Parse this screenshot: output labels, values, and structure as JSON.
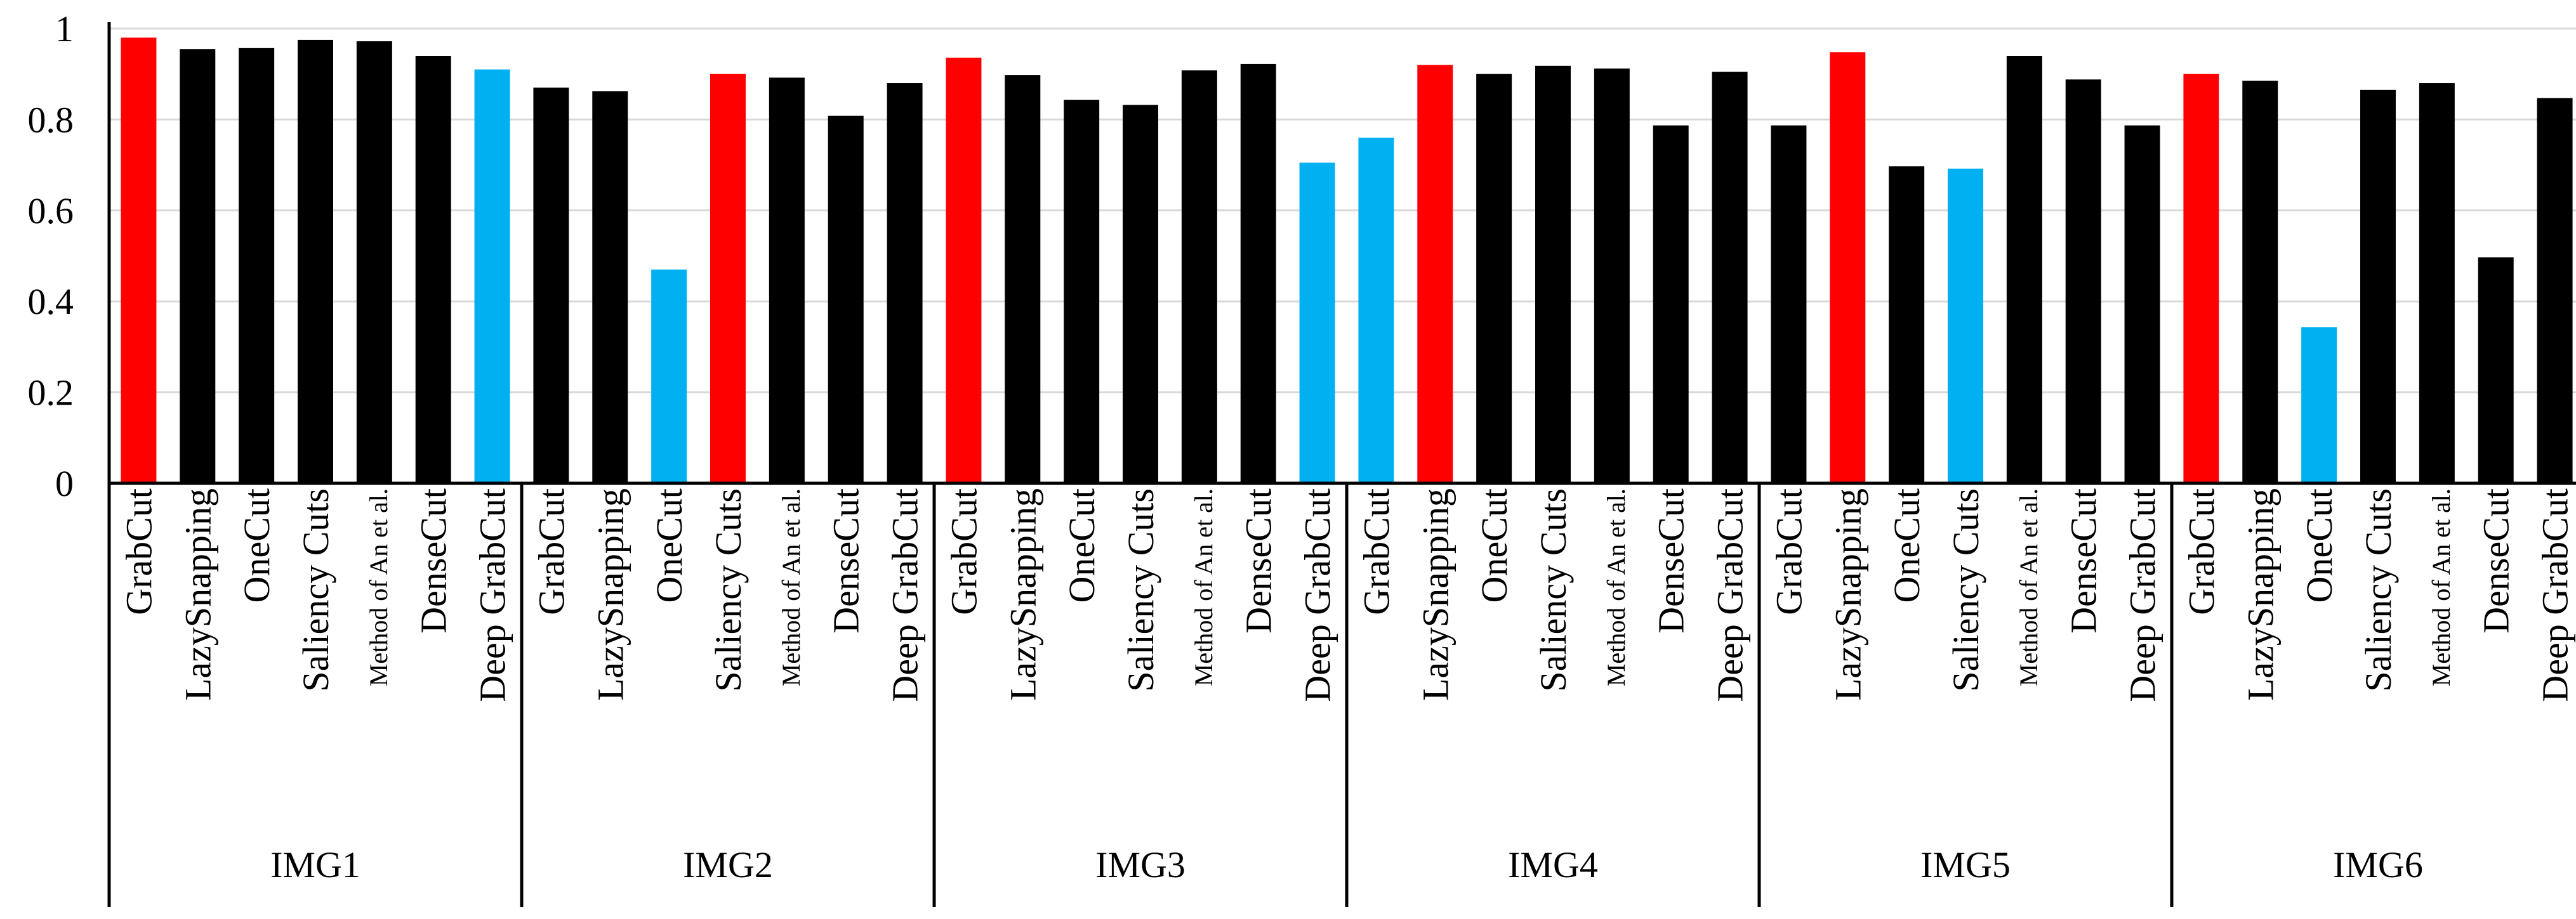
{
  "chart_data": {
    "type": "bar",
    "title": "",
    "xlabel": "",
    "ylabel": "",
    "ylim": [
      0,
      1
    ],
    "y_ticks": [
      "0",
      "0.2",
      "0.4",
      "0.6",
      "0.8",
      "1"
    ],
    "grid": true,
    "legend": "none",
    "colors": {
      "default": "#000000",
      "best": "#ff0000",
      "worst": "#00b0f0",
      "grid": "#d9d9d9",
      "axis": "#000000"
    },
    "methods": [
      "GrabCut",
      "LazySnapping",
      "OneCut",
      "Saliency Cuts",
      "Method of An et al.",
      "DenseCut",
      "Deep GrabCut"
    ],
    "groups": [
      {
        "name": "IMG1",
        "values": [
          0.98,
          0.955,
          0.957,
          0.975,
          0.972,
          0.94,
          0.91
        ],
        "highlight": [
          "best",
          "default",
          "default",
          "default",
          "default",
          "default",
          "worst"
        ]
      },
      {
        "name": "IMG2",
        "values": [
          0.87,
          0.862,
          0.47,
          0.9,
          0.892,
          0.808,
          0.88
        ],
        "highlight": [
          "default",
          "default",
          "worst",
          "best",
          "default",
          "default",
          "default"
        ]
      },
      {
        "name": "IMG3",
        "values": [
          0.936,
          0.898,
          0.843,
          0.832,
          0.908,
          0.922,
          0.705
        ],
        "highlight": [
          "best",
          "default",
          "default",
          "default",
          "default",
          "default",
          "worst"
        ]
      },
      {
        "name": "IMG4",
        "values": [
          0.76,
          0.92,
          0.9,
          0.918,
          0.912,
          0.787,
          0.905
        ],
        "highlight": [
          "worst",
          "best",
          "default",
          "default",
          "default",
          "default",
          "default"
        ]
      },
      {
        "name": "IMG5",
        "values": [
          0.787,
          0.948,
          0.697,
          0.692,
          0.94,
          0.888,
          0.787
        ],
        "highlight": [
          "default",
          "best",
          "default",
          "worst",
          "default",
          "default",
          "default"
        ]
      },
      {
        "name": "IMG6",
        "values": [
          0.9,
          0.885,
          0.343,
          0.865,
          0.88,
          0.497,
          0.847
        ],
        "highlight": [
          "best",
          "default",
          "worst",
          "default",
          "default",
          "default",
          "default"
        ]
      }
    ]
  }
}
